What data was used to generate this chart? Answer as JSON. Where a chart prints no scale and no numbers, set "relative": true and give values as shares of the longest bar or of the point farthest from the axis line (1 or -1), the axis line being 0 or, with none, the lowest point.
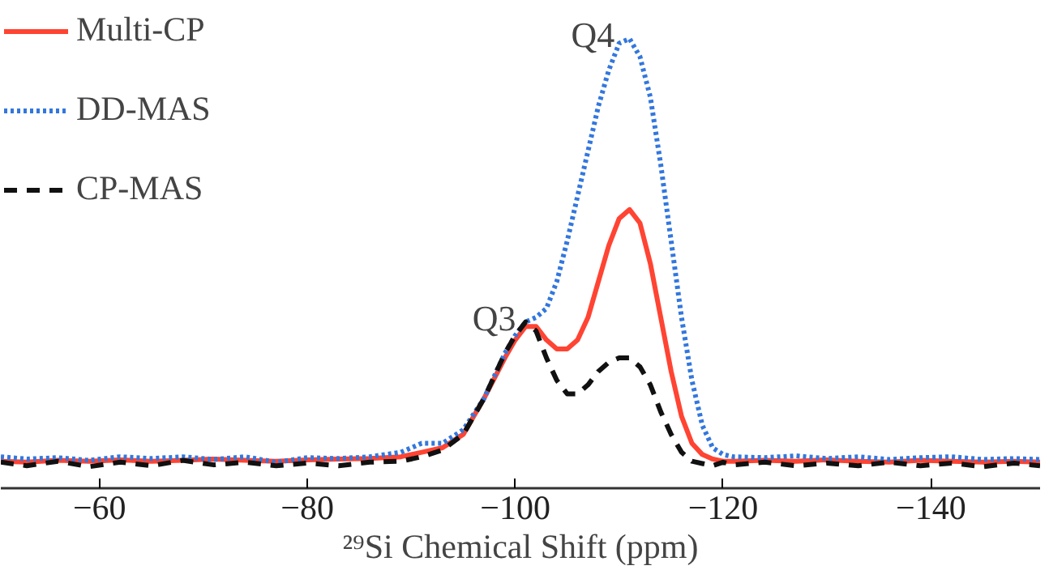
{
  "chart_data": {
    "type": "line",
    "relative": true,
    "xlabel": "²⁹Si Chemical Shift (ppm)",
    "xlim": [
      -50.5,
      -150.5
    ],
    "xticks": [
      -60,
      -80,
      -100,
      -120,
      -140
    ],
    "legend": "top left",
    "grid": false,
    "x": [
      -50.5,
      -53,
      -56,
      -59,
      -62,
      -65,
      -68,
      -71,
      -74,
      -77,
      -80,
      -83,
      -86,
      -89,
      -91,
      -93,
      -95,
      -97,
      -99,
      -100,
      -101,
      -102,
      -103,
      -104,
      -105,
      -106,
      -107,
      -108,
      -109,
      -110,
      -111,
      -112,
      -113,
      -114,
      -115,
      -116,
      -117,
      -118,
      -119,
      -120,
      -121,
      -124,
      -127,
      -130,
      -133,
      -136,
      -139,
      -142,
      -145,
      -148,
      -150.5
    ],
    "series": [
      {
        "name": "Multi-CP",
        "color": "#ff4433",
        "line_style": "solid",
        "values": [
          0.06,
          0.058,
          0.062,
          0.06,
          0.063,
          0.06,
          0.062,
          0.065,
          0.062,
          0.06,
          0.063,
          0.065,
          0.066,
          0.07,
          0.08,
          0.09,
          0.12,
          0.2,
          0.29,
          0.33,
          0.36,
          0.36,
          0.33,
          0.31,
          0.31,
          0.33,
          0.38,
          0.46,
          0.54,
          0.6,
          0.62,
          0.59,
          0.5,
          0.38,
          0.26,
          0.16,
          0.1,
          0.075,
          0.065,
          0.06,
          0.06,
          0.062,
          0.06,
          0.063,
          0.06,
          0.058,
          0.062,
          0.06,
          0.058,
          0.06,
          0.058
        ]
      },
      {
        "name": "DD-MAS",
        "color": "#3377dd",
        "line_style": "dotted",
        "values": [
          0.07,
          0.065,
          0.068,
          0.062,
          0.07,
          0.066,
          0.07,
          0.064,
          0.07,
          0.058,
          0.068,
          0.066,
          0.07,
          0.08,
          0.1,
          0.1,
          0.13,
          0.2,
          0.3,
          0.34,
          0.37,
          0.38,
          0.4,
          0.46,
          0.55,
          0.65,
          0.75,
          0.85,
          0.93,
          0.99,
          1.0,
          0.96,
          0.87,
          0.72,
          0.55,
          0.38,
          0.24,
          0.14,
          0.09,
          0.075,
          0.07,
          0.068,
          0.072,
          0.066,
          0.07,
          0.064,
          0.068,
          0.07,
          0.064,
          0.066,
          0.064
        ]
      },
      {
        "name": "CP-MAS",
        "color": "#111111",
        "line_style": "dashed",
        "values": [
          0.058,
          0.05,
          0.06,
          0.048,
          0.058,
          0.05,
          0.062,
          0.052,
          0.058,
          0.05,
          0.056,
          0.05,
          0.058,
          0.06,
          0.07,
          0.085,
          0.12,
          0.2,
          0.3,
          0.34,
          0.37,
          0.35,
          0.29,
          0.24,
          0.21,
          0.21,
          0.23,
          0.26,
          0.28,
          0.29,
          0.29,
          0.27,
          0.23,
          0.17,
          0.12,
          0.08,
          0.06,
          0.055,
          0.05,
          0.058,
          0.052,
          0.058,
          0.05,
          0.056,
          0.05,
          0.058,
          0.05,
          0.056,
          0.048,
          0.056,
          0.05
        ]
      }
    ],
    "annotations": [
      {
        "text": "Q4",
        "x": -110.5,
        "y": 1.0
      },
      {
        "text": "Q3",
        "x": -101,
        "y": 0.37
      }
    ]
  }
}
